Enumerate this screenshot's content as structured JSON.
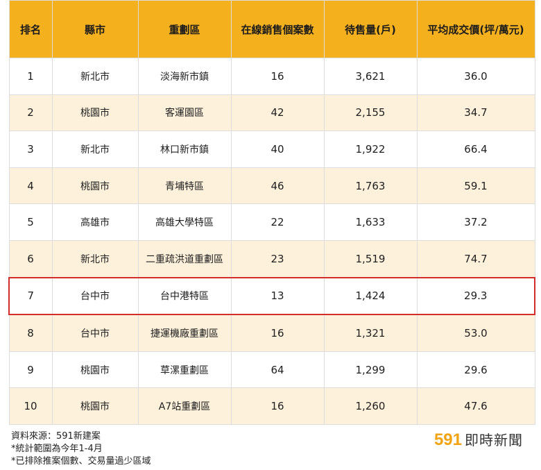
{
  "table": {
    "headers": [
      "排名",
      "縣市",
      "重劃區",
      "在線銷售個案數",
      "待售量(戶)",
      "平均成交價(坪/萬元)"
    ],
    "rows": [
      [
        "1",
        "新北市",
        "淡海新市鎮",
        "16",
        "3,621",
        "36.0"
      ],
      [
        "2",
        "桃園市",
        "客運園區",
        "42",
        "2,155",
        "34.7"
      ],
      [
        "3",
        "新北市",
        "林口新市鎮",
        "40",
        "1,922",
        "66.4"
      ],
      [
        "4",
        "桃園市",
        "青埔特區",
        "46",
        "1,763",
        "59.1"
      ],
      [
        "5",
        "高雄市",
        "高雄大學特區",
        "22",
        "1,633",
        "37.2"
      ],
      [
        "6",
        "新北市",
        "二重疏洪道重劃區",
        "23",
        "1,519",
        "74.7"
      ],
      [
        "7",
        "台中市",
        "台中港特區",
        "13",
        "1,424",
        "29.3"
      ],
      [
        "8",
        "台中市",
        "捷運機廠重劃區",
        "16",
        "1,321",
        "53.0"
      ],
      [
        "9",
        "桃園市",
        "草漯重劃區",
        "64",
        "1,299",
        "29.6"
      ],
      [
        "10",
        "桃園市",
        "A7站重劃區",
        "16",
        "1,260",
        "47.6"
      ]
    ],
    "highlight_rank": "7",
    "header_color": "#f5b01e",
    "stripe_color": "#fdf1dc",
    "highlight_color": "#d42b2b"
  },
  "footnotes": [
    "資料來源：591新建案",
    "*統計範圍為今年1-4月",
    "*已排除推案個數、交易量過少區域"
  ],
  "brand": {
    "number": "591",
    "text": "即時新聞",
    "color": "#f2a312"
  }
}
